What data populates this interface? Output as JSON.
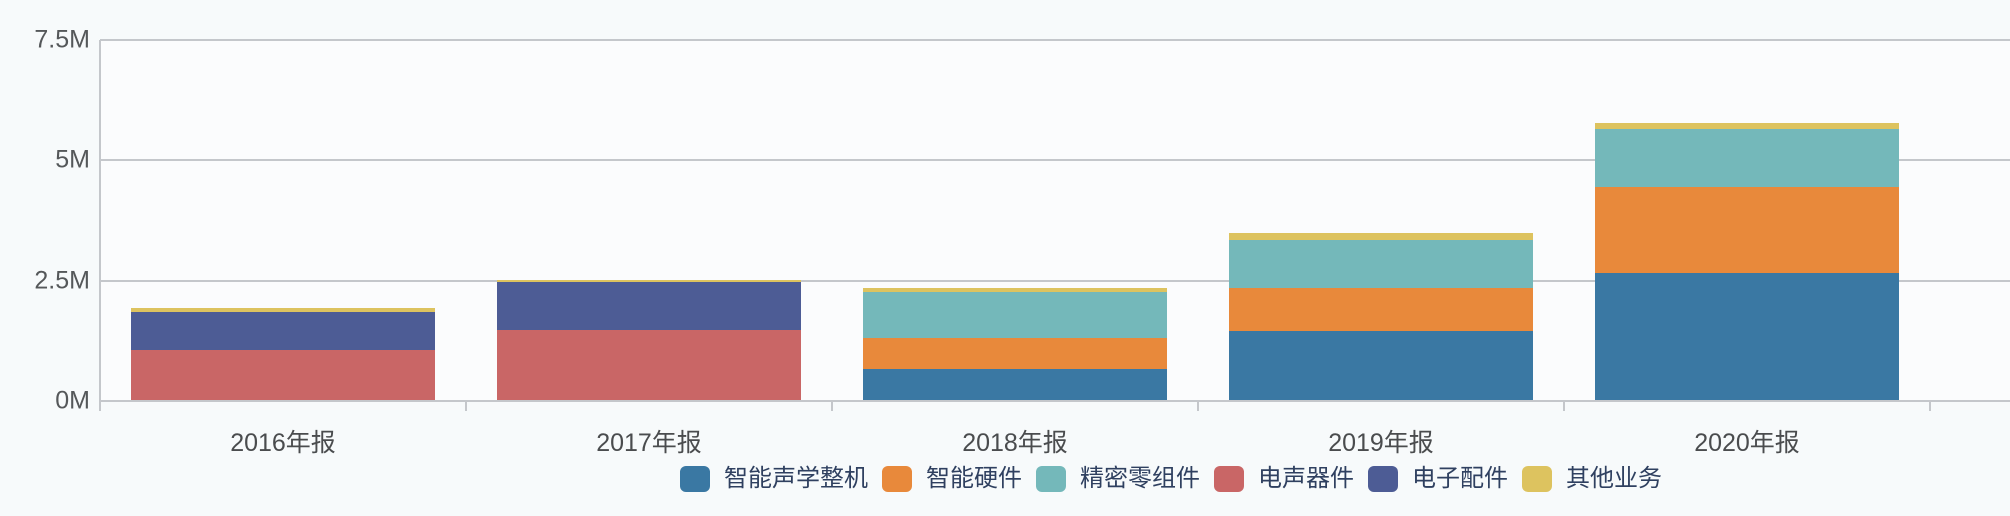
{
  "chart_data": {
    "type": "bar",
    "stacked": true,
    "title": "",
    "xlabel": "",
    "ylabel": "",
    "grid": true,
    "legend_position": "bottom",
    "categories": [
      "2016年报",
      "2017年报",
      "2018年报",
      "2019年报",
      "2020年报"
    ],
    "series": [
      {
        "name": "智能声学整机",
        "color": "#3a78a3",
        "values": [
          0,
          0,
          0.665,
          1.46,
          2.665
        ]
      },
      {
        "name": "智能硬件",
        "color": "#e8893b",
        "values": [
          0,
          0,
          0.645,
          0.895,
          1.775
        ]
      },
      {
        "name": "精密零组件",
        "color": "#74b8ba",
        "values": [
          0,
          0,
          0.955,
          0.99,
          1.205
        ]
      },
      {
        "name": "电声器件",
        "color": "#c96666",
        "values": [
          1.06,
          1.475,
          0,
          0,
          0
        ]
      },
      {
        "name": "电子配件",
        "color": "#4d5c95",
        "values": [
          0.78,
          0.99,
          0,
          0,
          0
        ]
      },
      {
        "name": "其他业务",
        "color": "#ddc35f",
        "values": [
          0.083,
          0.05,
          0.083,
          0.14,
          0.125
        ]
      }
    ],
    "y_axis": {
      "ylim": [
        0,
        7.5
      ],
      "ticks": [
        {
          "value": 0,
          "label": "0M"
        },
        {
          "value": 2.5,
          "label": "2.5M"
        },
        {
          "value": 5,
          "label": "5M"
        },
        {
          "value": 7.5,
          "label": "7.5M"
        }
      ]
    },
    "legend": [
      "智能声学整机",
      "智能硬件",
      "精密零组件",
      "电声器件",
      "电子配件",
      "其他业务"
    ]
  },
  "colors": {
    "background": "#f7fafb",
    "plot_background": "#fbfcfd",
    "grid_line": "#c4c7cb",
    "axis_line": "#c4c7cb",
    "y_label_text": "#55585a",
    "x_label_text": "#4a4c4e",
    "legend_text": "#2f4060"
  }
}
